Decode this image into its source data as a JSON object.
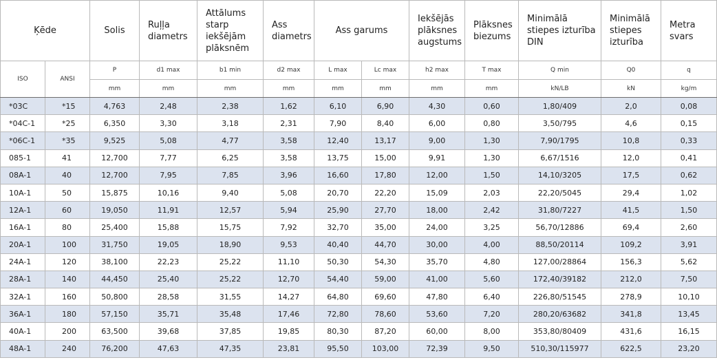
{
  "headers": {
    "chain": "Ķēde",
    "pitch": "Solis",
    "roller_diameter": "Ruļļa diametrs",
    "inner_width": "Attālums starp iekšējām plāksnēm",
    "pin_diameter": "Ass diametrs",
    "pin_length": "Ass garums",
    "plate_height": "Iekšējās plāksnes augstums",
    "plate_thickness": "Plāksnes biezums",
    "min_tensile_din": "Minimālā stiepes izturība DIN",
    "min_tensile": "Minimālā stiepes izturība",
    "weight": "Metra svars"
  },
  "subheaders": {
    "iso": "ISO",
    "ansi": "ANSI",
    "symbols": [
      "P",
      "d1 max",
      "b1 min",
      "d2 max",
      "L max",
      "Lc max",
      "h2 max",
      "T max",
      "Q min",
      "Q0",
      "q"
    ],
    "units": [
      "mm",
      "mm",
      "mm",
      "mm",
      "mm",
      "mm",
      "mm",
      "mm",
      "kN/LB",
      "kN",
      "kg/m"
    ]
  },
  "rows": [
    [
      "*03C",
      "*15",
      "4,763",
      "2,48",
      "2,38",
      "1,62",
      "6,10",
      "6,90",
      "4,30",
      "0,60",
      "1,80/409",
      "2,0",
      "0,08"
    ],
    [
      "*04C-1",
      "*25",
      "6,350",
      "3,30",
      "3,18",
      "2,31",
      "7,90",
      "8,40",
      "6,00",
      "0,80",
      "3,50/795",
      "4,6",
      "0,15"
    ],
    [
      "*06C-1",
      "*35",
      "9,525",
      "5,08",
      "4,77",
      "3,58",
      "12,40",
      "13,17",
      "9,00",
      "1,30",
      "7,90/1795",
      "10,8",
      "0,33"
    ],
    [
      "085-1",
      "41",
      "12,700",
      "7,77",
      "6,25",
      "3,58",
      "13,75",
      "15,00",
      "9,91",
      "1,30",
      "6,67/1516",
      "12,0",
      "0,41"
    ],
    [
      "08A-1",
      "40",
      "12,700",
      "7,95",
      "7,85",
      "3,96",
      "16,60",
      "17,80",
      "12,00",
      "1,50",
      "14,10/3205",
      "17,5",
      "0,62"
    ],
    [
      "10A-1",
      "50",
      "15,875",
      "10,16",
      "9,40",
      "5,08",
      "20,70",
      "22,20",
      "15,09",
      "2,03",
      "22,20/5045",
      "29,4",
      "1,02"
    ],
    [
      "12A-1",
      "60",
      "19,050",
      "11,91",
      "12,57",
      "5,94",
      "25,90",
      "27,70",
      "18,00",
      "2,42",
      "31,80/7227",
      "41,5",
      "1,50"
    ],
    [
      "16A-1",
      "80",
      "25,400",
      "15,88",
      "15,75",
      "7,92",
      "32,70",
      "35,00",
      "24,00",
      "3,25",
      "56,70/12886",
      "69,4",
      "2,60"
    ],
    [
      "20A-1",
      "100",
      "31,750",
      "19,05",
      "18,90",
      "9,53",
      "40,40",
      "44,70",
      "30,00",
      "4,00",
      "88,50/20114",
      "109,2",
      "3,91"
    ],
    [
      "24A-1",
      "120",
      "38,100",
      "22,23",
      "25,22",
      "11,10",
      "50,30",
      "54,30",
      "35,70",
      "4,80",
      "127,00/28864",
      "156,3",
      "5,62"
    ],
    [
      "28A-1",
      "140",
      "44,450",
      "25,40",
      "25,22",
      "12,70",
      "54,40",
      "59,00",
      "41,00",
      "5,60",
      "172,40/39182",
      "212,0",
      "7,50"
    ],
    [
      "32A-1",
      "160",
      "50,800",
      "28,58",
      "31,55",
      "14,27",
      "64,80",
      "69,60",
      "47,80",
      "6,40",
      "226,80/51545",
      "278,9",
      "10,10"
    ],
    [
      "36A-1",
      "180",
      "57,150",
      "35,71",
      "35,48",
      "17,46",
      "72,80",
      "78,60",
      "53,60",
      "7,20",
      "280,20/63682",
      "341,8",
      "13,45"
    ],
    [
      "40A-1",
      "200",
      "63,500",
      "39,68",
      "37,85",
      "19,85",
      "80,30",
      "87,20",
      "60,00",
      "8,00",
      "353,80/80409",
      "431,6",
      "16,15"
    ],
    [
      "48A-1",
      "240",
      "76,200",
      "47,63",
      "47,35",
      "23,81",
      "95,50",
      "103,00",
      "72,39",
      "9,50",
      "510,30/115977",
      "622,5",
      "23,20"
    ]
  ]
}
